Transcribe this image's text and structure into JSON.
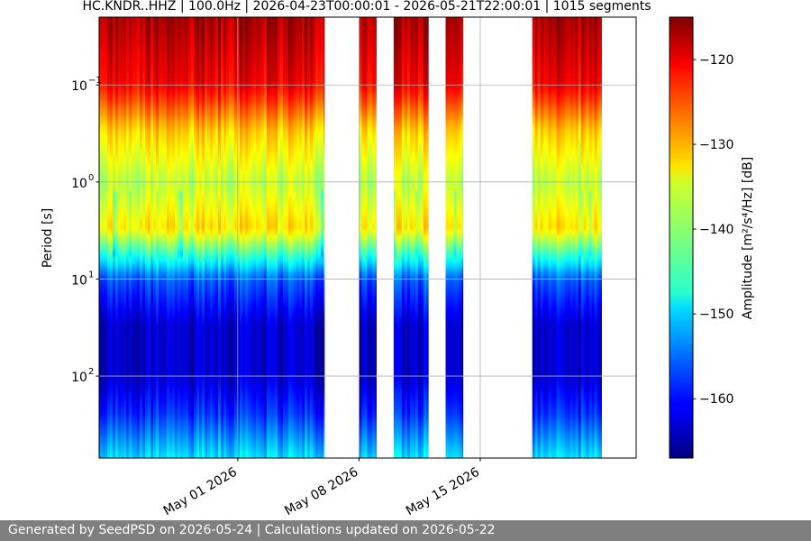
{
  "chart_data": {
    "type": "heatmap",
    "title": "HC.KNDR..HHZ | 100.0Hz | 2026-04-23T00:00:01 - 2026-05-21T22:00:01 | 1015 segments",
    "xlabel": "",
    "ylabel": "Period [s]",
    "x_range": [
      "2026-04-23",
      "2026-05-24"
    ],
    "x_ticks": [
      {
        "date": "2026-05-01",
        "label": "May 01 2026"
      },
      {
        "date": "2026-05-08",
        "label": "May 08 2026"
      },
      {
        "date": "2026-05-15",
        "label": "May 15 2026"
      }
    ],
    "y_scale": "log",
    "y_inverted": true,
    "y_range": [
      0.02,
      700
    ],
    "y_ticks": [
      {
        "value": 0.1,
        "base": "10",
        "exp": "−1"
      },
      {
        "value": 1,
        "base": "10",
        "exp": "0"
      },
      {
        "value": 10,
        "base": "10",
        "exp": "1"
      },
      {
        "value": 100,
        "base": "10",
        "exp": "2"
      }
    ],
    "grid": true,
    "colormap": "jet",
    "colorbar": {
      "label": "Amplitude [m²/s⁴/Hz] [dB]",
      "range": [
        -167,
        -115
      ],
      "ticks": [
        {
          "value": -120,
          "label": "−120"
        },
        {
          "value": -130,
          "label": "−130"
        },
        {
          "value": -140,
          "label": "−140"
        },
        {
          "value": -150,
          "label": "−150"
        },
        {
          "value": -160,
          "label": "−160"
        }
      ]
    },
    "data_segments": [
      {
        "start": "2026-04-23",
        "end": "2026-05-06"
      },
      {
        "start": "2026-05-08",
        "end": "2026-05-09"
      },
      {
        "start": "2026-05-10",
        "end": "2026-05-12"
      },
      {
        "start": "2026-05-13",
        "end": "2026-05-14"
      },
      {
        "start": "2026-05-18",
        "end": "2026-05-22"
      }
    ],
    "data_gaps": [
      {
        "start": "2026-05-06",
        "end": "2026-05-08"
      },
      {
        "start": "2026-05-09",
        "end": "2026-05-10"
      },
      {
        "start": "2026-05-12",
        "end": "2026-05-13"
      },
      {
        "start": "2026-05-14",
        "end": "2026-05-18"
      },
      {
        "start": "2026-05-22",
        "end": "2026-05-24"
      }
    ],
    "psd_profile": [
      {
        "period": 0.02,
        "db": -117
      },
      {
        "period": 0.1,
        "db": -121
      },
      {
        "period": 0.3,
        "db": -132
      },
      {
        "period": 1,
        "db": -138
      },
      {
        "period": 3,
        "db": -133
      },
      {
        "period": 6,
        "db": -146
      },
      {
        "period": 10,
        "db": -156
      },
      {
        "period": 30,
        "db": -163
      },
      {
        "period": 100,
        "db": -163
      },
      {
        "period": 250,
        "db": -158
      },
      {
        "period": 700,
        "db": -149
      }
    ]
  },
  "footer": {
    "text": "Generated by SeedPSD on 2026-05-24 | Calculations updated on 2026-05-22"
  }
}
